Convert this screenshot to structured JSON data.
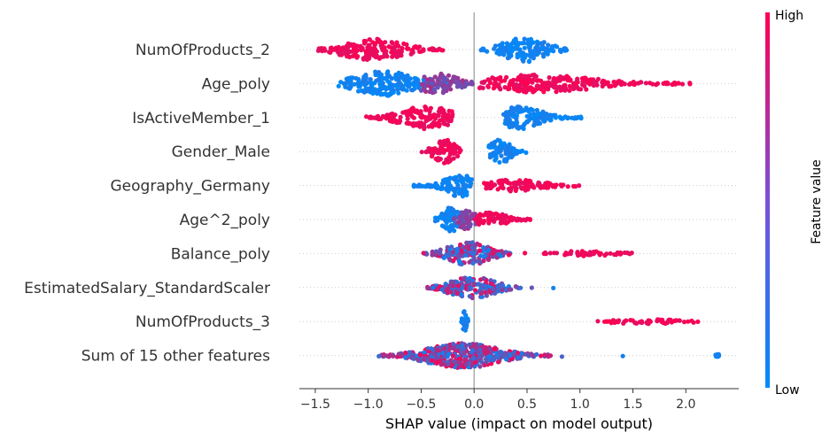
{
  "chart_data": {
    "type": "scatter",
    "subtype": "shap-beeswarm",
    "xlabel": "SHAP value (impact on model output)",
    "xlim": [
      -1.65,
      2.5
    ],
    "xticks": [
      -1.5,
      -1.0,
      -0.5,
      0.0,
      0.5,
      1.0,
      1.5,
      2.0
    ],
    "xtick_labels": [
      "−1.5",
      "−1.0",
      "−0.5",
      "0.0",
      "0.5",
      "1.0",
      "1.5",
      "2.0"
    ],
    "zero_line": 0,
    "features": [
      {
        "name": "NumOfProducts_2",
        "clusters": [
          {
            "low": -1.5,
            "high": -0.25,
            "center": -0.95,
            "spread": 0.3,
            "height": 12,
            "color": "high"
          },
          {
            "low": 0.05,
            "high": 0.88,
            "center": 0.48,
            "spread": 0.2,
            "height": 14,
            "color": "low"
          }
        ]
      },
      {
        "name": "Age_poly",
        "clusters": [
          {
            "low": -1.28,
            "high": -0.1,
            "center": -0.85,
            "spread": 0.28,
            "height": 14,
            "color": "low"
          },
          {
            "low": -0.5,
            "high": 0.0,
            "center": -0.35,
            "spread": 0.2,
            "height": 12,
            "color": "mid"
          },
          {
            "low": 0.05,
            "high": 2.05,
            "center": 0.6,
            "spread": 0.55,
            "height": 10,
            "color": "high"
          }
        ]
      },
      {
        "name": "IsActiveMember_1",
        "clusters": [
          {
            "low": -1.08,
            "high": -0.2,
            "center": -0.45,
            "spread": 0.25,
            "height": 13,
            "color": "high"
          },
          {
            "low": 0.27,
            "high": 1.02,
            "center": 0.45,
            "spread": 0.2,
            "height": 13,
            "color": "low"
          }
        ]
      },
      {
        "name": "Gender_Male",
        "clusters": [
          {
            "low": -0.5,
            "high": -0.12,
            "center": -0.28,
            "spread": 0.1,
            "height": 14,
            "color": "high"
          },
          {
            "low": 0.13,
            "high": 0.53,
            "center": 0.24,
            "spread": 0.1,
            "height": 14,
            "color": "low"
          }
        ]
      },
      {
        "name": "Geography_Germany",
        "clusters": [
          {
            "low": -0.57,
            "high": -0.02,
            "center": -0.12,
            "spread": 0.15,
            "height": 13,
            "color": "low"
          },
          {
            "low": 0.05,
            "high": 1.03,
            "center": 0.4,
            "spread": 0.25,
            "height": 7,
            "color": "high"
          }
        ]
      },
      {
        "name": "Age^2_poly",
        "clusters": [
          {
            "low": -0.4,
            "high": -0.05,
            "center": -0.22,
            "spread": 0.08,
            "height": 14,
            "color": "low"
          },
          {
            "low": -0.2,
            "high": 0.05,
            "center": -0.07,
            "spread": 0.08,
            "height": 12,
            "color": "mid"
          },
          {
            "low": 0.0,
            "high": 0.57,
            "center": 0.15,
            "spread": 0.15,
            "height": 9,
            "color": "high"
          }
        ]
      },
      {
        "name": "Balance_poly",
        "clusters": [
          {
            "low": -0.48,
            "high": 0.55,
            "center": -0.05,
            "spread": 0.2,
            "height": 13,
            "color": "mix"
          },
          {
            "low": 0.65,
            "high": 1.55,
            "center": 1.05,
            "spread": 0.25,
            "height": 3,
            "color": "high"
          }
        ]
      },
      {
        "name": "EstimatedSalary_StandardScaler",
        "clusters": [
          {
            "low": -0.47,
            "high": 0.85,
            "center": -0.02,
            "spread": 0.22,
            "height": 12,
            "color": "mix"
          }
        ]
      },
      {
        "name": "NumOfProducts_3",
        "clusters": [
          {
            "low": -0.12,
            "high": -0.05,
            "center": -0.09,
            "spread": 0.02,
            "height": 12,
            "color": "low"
          },
          {
            "low": 1.1,
            "high": 2.12,
            "center": 1.6,
            "spread": 0.3,
            "height": 3,
            "color": "high"
          }
        ]
      },
      {
        "name": "Sum of 15 other features",
        "clusters": [
          {
            "low": -1.02,
            "high": 1.77,
            "center": -0.1,
            "spread": 0.35,
            "height": 14,
            "color": "mix"
          },
          {
            "low": 2.28,
            "high": 2.32,
            "center": 2.3,
            "spread": 0.01,
            "height": 1,
            "color": "low"
          }
        ]
      }
    ],
    "colorbar": {
      "label": "Feature value",
      "high_label": "High",
      "low_label": "Low",
      "colors": [
        "#008bfb",
        "#ff0051"
      ]
    }
  }
}
